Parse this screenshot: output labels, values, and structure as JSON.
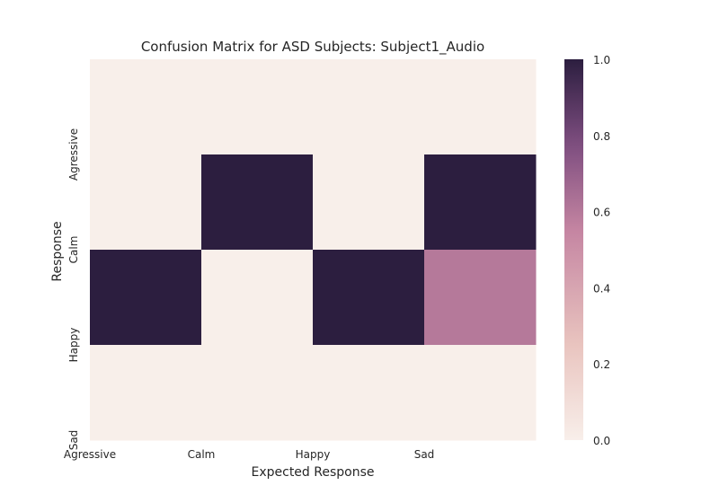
{
  "chart_data": {
    "type": "heatmap",
    "title": "Confusion Matrix for ASD Subjects: Subject1_Audio",
    "xlabel": "Expected Response",
    "ylabel": "Response",
    "x_tick_labels": [
      "Agressive",
      "Calm",
      "Happy",
      "Sad"
    ],
    "y_tick_labels": [
      "Agressive",
      "Calm",
      "Happy",
      "Sad"
    ],
    "matrix": [
      [
        0,
        0,
        0,
        0
      ],
      [
        0,
        1,
        0,
        1
      ],
      [
        1,
        0,
        1,
        0.6
      ],
      [
        0,
        0,
        0,
        0
      ]
    ],
    "colorbar": {
      "range": [
        0,
        1
      ],
      "ticks": [
        0.0,
        0.2,
        0.4,
        0.6,
        0.8,
        1.0
      ],
      "tick_labels": [
        "0.0",
        "0.2",
        "0.4",
        "0.6",
        "0.8",
        "1.0"
      ],
      "colors": {
        "low": "#f8efea",
        "low_mid": "#e9c4bf",
        "mid": "#c585a2",
        "mid_high": "#7d4d7f",
        "high": "#2c1e3f"
      }
    },
    "grid": false
  }
}
